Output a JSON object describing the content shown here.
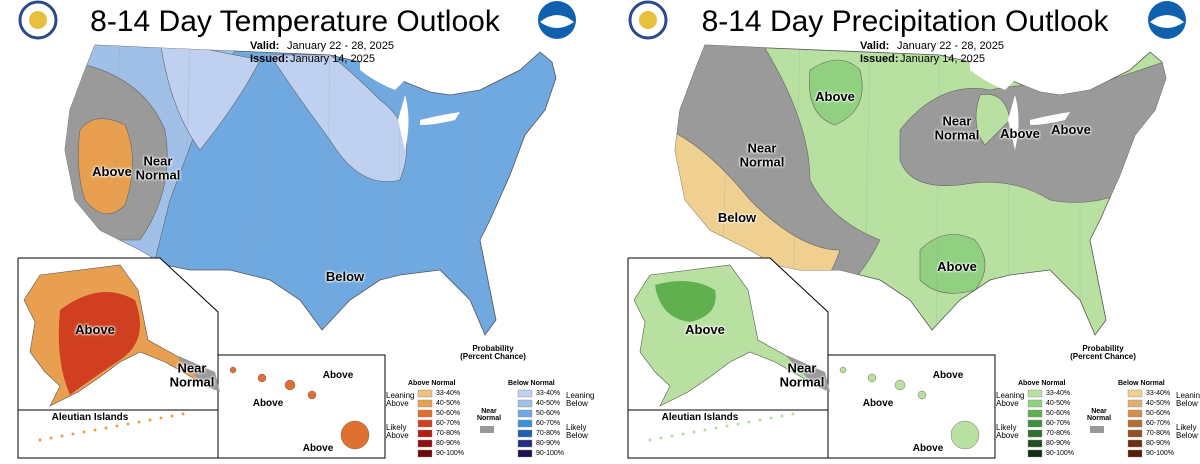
{
  "panels": [
    {
      "title": "8-14 Day Temperature Outlook",
      "valid_label": "Valid:",
      "valid": "January 22 - 28, 2025",
      "issued_label": "Issued:",
      "issued": "January 14, 2025",
      "map_labels": [
        "Above",
        "Near Normal",
        "Below"
      ],
      "alaska_labels": [
        "Above",
        "Near Normal"
      ],
      "aleutian": "Aleutian Islands",
      "hawaii_labels": [
        "Above",
        "Above",
        "Above"
      ],
      "legend": {
        "title": "Probability (Percent Chance)",
        "left_header": "Above Normal",
        "right_header": "Below Normal",
        "left_groups": [
          "Leaning Above",
          "Likely Above"
        ],
        "right_groups": [
          "Leaning Below",
          "Likely Below"
        ],
        "near": "Near Normal",
        "near_color": "#9a9a9a",
        "bins": [
          "33-40%",
          "40-50%",
          "50-60%",
          "60-70%",
          "70-80%",
          "80-90%",
          "90-100%"
        ],
        "left_colors": [
          "#f0c080",
          "#e8a050",
          "#e07030",
          "#d04020",
          "#b02010",
          "#901010",
          "#700808"
        ],
        "right_colors": [
          "#c0d0f0",
          "#a0c0e8",
          "#70a8e0",
          "#4090d8",
          "#2060b0",
          "#203080",
          "#201050"
        ]
      }
    },
    {
      "title": "8-14 Day Precipitation Outlook",
      "valid_label": "Valid:",
      "valid": "January 22 - 28, 2025",
      "issued_label": "Issued:",
      "issued": "January 14, 2025",
      "map_labels": [
        "Above",
        "Near Normal",
        "Near Normal",
        "Above",
        "Above",
        "Below",
        "Above"
      ],
      "alaska_labels": [
        "Above",
        "Near Normal"
      ],
      "aleutian": "Aleutian Islands",
      "hawaii_labels": [
        "Above",
        "Above",
        "Above"
      ],
      "legend": {
        "title": "Probability (Percent Chance)",
        "left_header": "Above Normal",
        "right_header": "Below Normal",
        "left_groups": [
          "Leaning Above",
          "Likely Above"
        ],
        "right_groups": [
          "Leaning Below",
          "Likely Below"
        ],
        "near": "Near Normal",
        "near_color": "#9a9a9a",
        "bins": [
          "33-40%",
          "40-50%",
          "50-60%",
          "60-70%",
          "70-80%",
          "80-90%",
          "90-100%"
        ],
        "left_colors": [
          "#b8e0a0",
          "#90d080",
          "#60b050",
          "#409040",
          "#307030",
          "#205020",
          "#103010"
        ],
        "right_colors": [
          "#f0d090",
          "#e0b070",
          "#d09050",
          "#b07030",
          "#905020",
          "#703010",
          "#502008"
        ]
      }
    }
  ]
}
